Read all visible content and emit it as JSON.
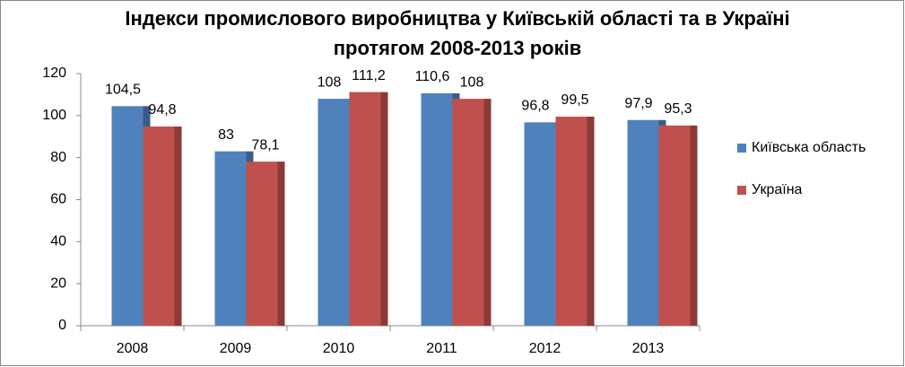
{
  "chart_data": {
    "type": "bar",
    "title": [
      "Індекси промислового виробництва у Київській області та в Україні",
      "протягом 2008-2013 років"
    ],
    "categories": [
      "2008",
      "2009",
      "2010",
      "2011",
      "2012",
      "2013"
    ],
    "series": [
      {
        "name": "Київська область",
        "color": "#4f81bd",
        "values": [
          104.5,
          83,
          108,
          110.6,
          96.8,
          97.9
        ],
        "value_labels": [
          "104,5",
          "83",
          "108",
          "110,6",
          "96,8",
          "97,9"
        ]
      },
      {
        "name": "Україна",
        "color": "#c0504d",
        "values": [
          94.8,
          78.1,
          111.2,
          108,
          99.5,
          95.3
        ],
        "value_labels": [
          "94,8",
          "78,1",
          "111,2",
          "108",
          "99,5",
          "95,3"
        ]
      }
    ],
    "ylim": [
      0,
      120
    ],
    "yticks": [
      0,
      20,
      40,
      60,
      80,
      100,
      120
    ],
    "grid": false,
    "legend": "right"
  }
}
